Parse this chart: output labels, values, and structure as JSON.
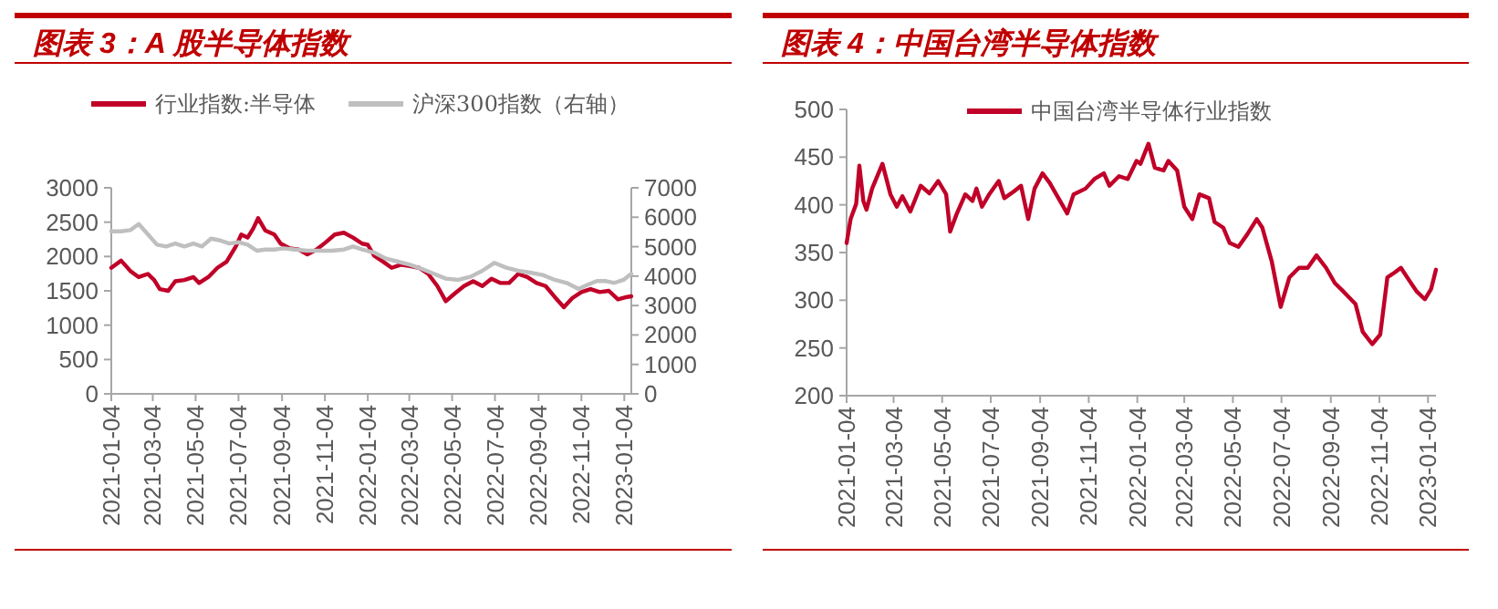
{
  "chart_data": [
    {
      "type": "line",
      "title": "图表 3：A 股半导体指数",
      "legend": "top",
      "xlim": [
        "2021-01-04",
        "2023-01-14"
      ],
      "xticks": [
        "2021-01-04",
        "2021-03-04",
        "2021-05-04",
        "2021-07-04",
        "2021-09-04",
        "2021-11-04",
        "2022-01-04",
        "2022-03-04",
        "2022-05-04",
        "2022-07-04",
        "2022-09-04",
        "2022-11-04",
        "2023-01-04"
      ],
      "ylim": [
        0,
        3000
      ],
      "yticks": [
        0,
        500,
        1000,
        1500,
        2000,
        2500,
        3000
      ],
      "y2lim": [
        0,
        7000
      ],
      "y2ticks": [
        0,
        1000,
        2000,
        3000,
        4000,
        5000,
        6000,
        7000
      ],
      "series": [
        {
          "name": "行业指数:半导体",
          "color": "#c00028",
          "x": [
            "2021-01-04",
            "2021-01-18",
            "2021-01-31",
            "2021-02-12",
            "2021-02-25",
            "2021-03-06",
            "2021-03-14",
            "2021-03-26",
            "2021-04-05",
            "2021-04-18",
            "2021-05-01",
            "2021-05-09",
            "2021-05-22",
            "2021-06-04",
            "2021-06-17",
            "2021-06-30",
            "2021-07-08",
            "2021-07-17",
            "2021-07-25",
            "2021-08-01",
            "2021-08-11",
            "2021-08-24",
            "2021-09-02",
            "2021-09-15",
            "2021-09-28",
            "2021-10-10",
            "2021-10-23",
            "2021-11-05",
            "2021-11-18",
            "2021-12-01",
            "2021-12-14",
            "2021-12-27",
            "2022-01-04",
            "2022-01-13",
            "2022-01-26",
            "2022-02-07",
            "2022-02-20",
            "2022-03-05",
            "2022-03-18",
            "2022-03-31",
            "2022-04-13",
            "2022-04-25",
            "2022-05-08",
            "2022-05-21",
            "2022-06-03",
            "2022-06-16",
            "2022-06-29",
            "2022-07-12",
            "2022-07-24",
            "2022-08-06",
            "2022-08-19",
            "2022-09-01",
            "2022-09-14",
            "2022-09-27",
            "2022-10-10",
            "2022-10-22",
            "2022-11-04",
            "2022-11-17",
            "2022-11-30",
            "2022-12-13",
            "2022-12-26",
            "2023-01-08",
            "2023-01-14"
          ],
          "values": [
            1835,
            1940,
            1790,
            1700,
            1746,
            1658,
            1526,
            1500,
            1640,
            1658,
            1700,
            1614,
            1700,
            1835,
            1923,
            2143,
            2320,
            2275,
            2408,
            2558,
            2381,
            2320,
            2187,
            2117,
            2100,
            2029,
            2100,
            2205,
            2320,
            2346,
            2275,
            2187,
            2170,
            2011,
            1923,
            1835,
            1879,
            1861,
            1835,
            1746,
            1570,
            1349,
            1464,
            1570,
            1640,
            1570,
            1676,
            1614,
            1614,
            1746,
            1700,
            1614,
            1570,
            1411,
            1261,
            1394,
            1482,
            1526,
            1482,
            1500,
            1376,
            1411,
            1420
          ]
        },
        {
          "name": "沪深300指数（右轴）",
          "color": "#bfbfbf",
          "axis": "y2",
          "x": [
            "2021-01-04",
            "2021-01-18",
            "2021-01-31",
            "2021-02-12",
            "2021-02-25",
            "2021-03-10",
            "2021-03-23",
            "2021-04-05",
            "2021-04-18",
            "2021-05-01",
            "2021-05-13",
            "2021-05-26",
            "2021-06-08",
            "2021-06-21",
            "2021-07-04",
            "2021-07-17",
            "2021-07-30",
            "2021-08-11",
            "2021-08-24",
            "2021-09-06",
            "2021-09-23",
            "2021-10-10",
            "2021-10-28",
            "2021-11-14",
            "2021-12-01",
            "2021-12-14",
            "2021-12-27",
            "2022-01-13",
            "2022-01-30",
            "2022-02-16",
            "2022-03-05",
            "2022-03-22",
            "2022-04-08",
            "2022-04-25",
            "2022-05-13",
            "2022-05-30",
            "2022-06-16",
            "2022-07-03",
            "2022-07-20",
            "2022-08-06",
            "2022-08-23",
            "2022-09-10",
            "2022-09-27",
            "2022-10-14",
            "2022-10-31",
            "2022-11-13",
            "2022-11-26",
            "2022-12-09",
            "2022-12-21",
            "2023-01-03",
            "2023-01-14"
          ],
          "values": [
            5521,
            5521,
            5562,
            5768,
            5418,
            5068,
            5006,
            5109,
            5006,
            5109,
            5006,
            5274,
            5212,
            5109,
            5150,
            5068,
            4862,
            4903,
            4903,
            4944,
            4903,
            4862,
            4862,
            4862,
            4903,
            5006,
            4903,
            4800,
            4594,
            4491,
            4388,
            4244,
            4079,
            3914,
            3873,
            3976,
            4182,
            4450,
            4285,
            4182,
            4120,
            4038,
            3873,
            3770,
            3564,
            3708,
            3832,
            3832,
            3770,
            3873,
            4079
          ]
        }
      ]
    },
    {
      "type": "line",
      "title": "图表 4：中国台湾半导体指数",
      "legend": "top",
      "xlim": [
        "2021-01-04",
        "2023-01-14"
      ],
      "xticks": [
        "2021-01-04",
        "2021-03-04",
        "2021-05-04",
        "2021-07-04",
        "2021-09-04",
        "2021-11-04",
        "2022-01-04",
        "2022-03-04",
        "2022-05-04",
        "2022-07-04",
        "2022-09-04",
        "2022-11-04",
        "2023-01-04"
      ],
      "ylim": [
        200,
        500
      ],
      "yticks": [
        200,
        250,
        300,
        350,
        400,
        450,
        500
      ],
      "series": [
        {
          "name": "中国台湾半导体行业指数",
          "color": "#c00028",
          "x": [
            "2021-01-04",
            "2021-01-09",
            "2021-01-16",
            "2021-01-20",
            "2021-01-25",
            "2021-01-29",
            "2021-02-05",
            "2021-02-18",
            "2021-02-28",
            "2021-03-08",
            "2021-03-15",
            "2021-03-25",
            "2021-04-07",
            "2021-04-18",
            "2021-04-29",
            "2021-05-09",
            "2021-05-14",
            "2021-05-22",
            "2021-06-02",
            "2021-06-11",
            "2021-06-16",
            "2021-06-23",
            "2021-07-02",
            "2021-07-14",
            "2021-07-21",
            "2021-08-02",
            "2021-08-11",
            "2021-08-20",
            "2021-08-28",
            "2021-09-07",
            "2021-09-16",
            "2021-09-27",
            "2021-10-08",
            "2021-10-16",
            "2021-10-31",
            "2021-11-11",
            "2021-11-23",
            "2021-11-30",
            "2021-12-12",
            "2021-12-23",
            "2022-01-03",
            "2022-01-08",
            "2022-01-18",
            "2022-01-26",
            "2022-02-06",
            "2022-02-12",
            "2022-02-23",
            "2022-03-04",
            "2022-03-14",
            "2022-03-23",
            "2022-04-04",
            "2022-04-11",
            "2022-04-22",
            "2022-04-30",
            "2022-05-11",
            "2022-05-22",
            "2022-06-03",
            "2022-06-10",
            "2022-06-22",
            "2022-07-03",
            "2022-07-14",
            "2022-07-26",
            "2022-08-06",
            "2022-08-17",
            "2022-08-29",
            "2022-09-09",
            "2022-09-20",
            "2022-10-05",
            "2022-10-14",
            "2022-10-26",
            "2022-11-05",
            "2022-11-14",
            "2022-11-23",
            "2022-12-01",
            "2022-12-12",
            "2022-12-21",
            "2022-12-31",
            "2023-01-08",
            "2023-01-14"
          ],
          "values": [
            360,
            385,
            401,
            441,
            404,
            395,
            417,
            443,
            411,
            398,
            409,
            393,
            420,
            412,
            425,
            411,
            372,
            390,
            411,
            404,
            417,
            398,
            411,
            425,
            407,
            414,
            420,
            385,
            417,
            433,
            423,
            407,
            391,
            411,
            417,
            427,
            433,
            420,
            430,
            427,
            446,
            443,
            464,
            439,
            436,
            446,
            436,
            398,
            385,
            411,
            407,
            382,
            376,
            360,
            356,
            369,
            385,
            376,
            340,
            293,
            324,
            334,
            334,
            347,
            334,
            318,
            309,
            296,
            267,
            254,
            264,
            324,
            329,
            334,
            320,
            309,
            301,
            312,
            332
          ]
        }
      ]
    }
  ]
}
